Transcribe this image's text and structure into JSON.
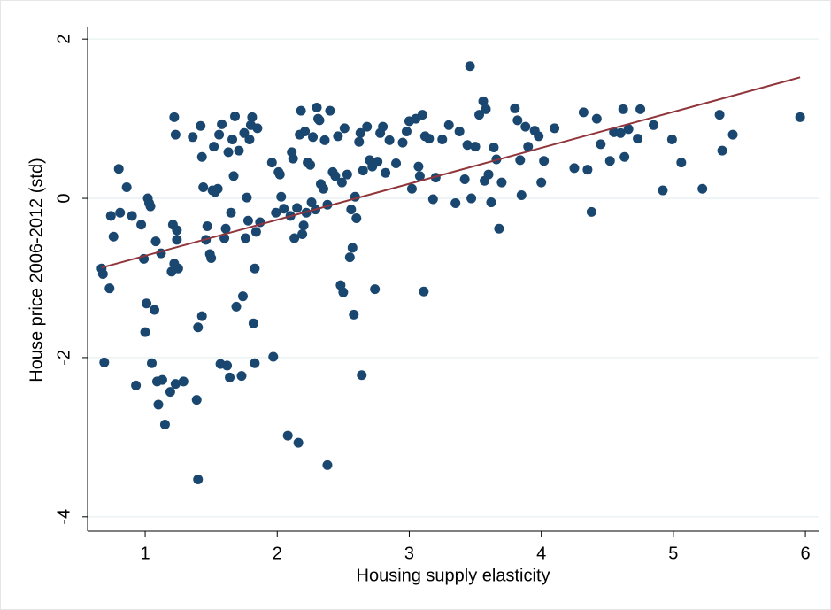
{
  "chart_data": {
    "type": "scatter",
    "x_label": "Housing supply elasticity",
    "y_label": "House price 2006-2012 (std)",
    "xlim": [
      0.564,
      6.1
    ],
    "ylim": [
      -4.18,
      2.38
    ],
    "xticks": [
      1,
      2,
      3,
      4,
      5,
      6
    ],
    "yticks": [
      -4,
      -2,
      0,
      2
    ],
    "grid": true,
    "color": "#1a476f",
    "x": [
      0.67,
      0.68,
      0.69,
      0.73,
      0.74,
      0.76,
      0.8,
      0.81,
      0.86,
      0.9,
      0.93,
      0.97,
      0.99,
      1.0,
      1.01,
      1.02,
      1.03,
      1.04,
      1.05,
      1.07,
      1.08,
      1.09,
      1.1,
      1.12,
      1.13,
      1.15,
      1.19,
      1.2,
      1.21,
      1.22,
      1.22,
      1.23,
      1.23,
      1.24,
      1.24,
      1.25,
      1.29,
      1.36,
      1.39,
      1.4,
      1.4,
      1.42,
      1.43,
      1.43,
      1.44,
      1.46,
      1.47,
      1.49,
      1.5,
      1.51,
      1.52,
      1.53,
      1.55,
      1.56,
      1.57,
      1.58,
      1.6,
      1.61,
      1.62,
      1.63,
      1.64,
      1.65,
      1.66,
      1.67,
      1.68,
      1.69,
      1.71,
      1.73,
      1.74,
      1.75,
      1.76,
      1.77,
      1.78,
      1.79,
      1.8,
      1.81,
      1.82,
      1.83,
      1.83,
      1.84,
      1.85,
      1.87,
      1.96,
      1.97,
      1.99,
      2.01,
      2.02,
      2.03,
      2.05,
      2.08,
      2.1,
      2.11,
      2.12,
      2.13,
      2.15,
      2.16,
      2.17,
      2.18,
      2.19,
      2.2,
      2.21,
      2.22,
      2.23,
      2.25,
      2.26,
      2.27,
      2.29,
      2.3,
      2.31,
      2.32,
      2.33,
      2.35,
      2.36,
      2.38,
      2.38,
      2.4,
      2.42,
      2.44,
      2.46,
      2.48,
      2.49,
      2.5,
      2.51,
      2.53,
      2.55,
      2.56,
      2.57,
      2.58,
      2.59,
      2.6,
      2.62,
      2.63,
      2.64,
      2.65,
      2.68,
      2.7,
      2.72,
      2.74,
      2.76,
      2.78,
      2.8,
      2.82,
      2.85,
      2.9,
      2.95,
      2.98,
      3.0,
      3.02,
      3.05,
      3.07,
      3.08,
      3.1,
      3.11,
      3.12,
      3.15,
      3.18,
      3.2,
      3.25,
      3.3,
      3.35,
      3.38,
      3.42,
      3.44,
      3.46,
      3.47,
      3.5,
      3.53,
      3.56,
      3.57,
      3.58,
      3.6,
      3.62,
      3.64,
      3.66,
      3.68,
      3.7,
      3.8,
      3.82,
      3.84,
      3.85,
      3.88,
      3.9,
      3.95,
      3.98,
      4.0,
      4.02,
      4.1,
      4.25,
      4.32,
      4.35,
      4.38,
      4.42,
      4.45,
      4.52,
      4.55,
      4.6,
      4.62,
      4.63,
      4.66,
      4.73,
      4.75,
      4.85,
      4.92,
      4.99,
      5.06,
      5.22,
      5.35,
      5.37,
      5.45,
      5.96
    ],
    "y": [
      -0.88,
      -0.95,
      -2.06,
      -1.13,
      -0.22,
      -0.48,
      0.37,
      -0.18,
      0.14,
      -0.22,
      -2.35,
      -0.33,
      -0.76,
      -1.68,
      -1.32,
      0.0,
      -0.06,
      -0.1,
      -2.07,
      -1.4,
      -0.54,
      -2.3,
      -2.59,
      -0.69,
      -2.28,
      -2.84,
      -2.43,
      -0.92,
      -0.33,
      -0.82,
      1.02,
      -2.33,
      0.8,
      -0.52,
      -0.4,
      -0.88,
      -2.3,
      0.77,
      -2.53,
      -3.53,
      -1.62,
      0.91,
      -1.48,
      0.52,
      0.14,
      -0.52,
      -0.35,
      -0.7,
      -0.75,
      0.1,
      0.65,
      0.08,
      0.12,
      0.8,
      -2.08,
      0.93,
      -0.5,
      -0.38,
      -2.1,
      0.58,
      -2.25,
      -0.18,
      0.74,
      0.28,
      1.03,
      -1.36,
      0.6,
      -2.23,
      -1.23,
      0.82,
      -0.5,
      0.01,
      -0.28,
      0.74,
      0.92,
      1.02,
      -1.57,
      -0.88,
      -2.07,
      -0.42,
      0.88,
      -0.3,
      0.45,
      -1.99,
      -0.18,
      0.33,
      0.3,
      0.02,
      -0.13,
      -2.98,
      -0.22,
      0.58,
      0.5,
      -0.5,
      -0.12,
      -3.07,
      0.8,
      1.1,
      -0.45,
      -0.34,
      0.84,
      -0.18,
      0.45,
      0.42,
      -0.05,
      0.77,
      -0.14,
      1.14,
      1.0,
      0.98,
      0.18,
      0.12,
      0.73,
      -0.08,
      -3.35,
      1.1,
      0.33,
      0.28,
      0.78,
      -1.09,
      0.2,
      -1.18,
      0.88,
      0.3,
      -0.74,
      -0.14,
      -0.62,
      -1.46,
      0.02,
      -0.25,
      0.71,
      0.82,
      -2.22,
      0.35,
      0.9,
      0.48,
      0.4,
      -1.14,
      0.46,
      0.82,
      0.9,
      0.32,
      0.73,
      0.44,
      0.7,
      0.84,
      0.97,
      0.12,
      1.0,
      0.4,
      0.28,
      1.05,
      -1.17,
      0.78,
      0.75,
      -0.01,
      0.26,
      0.74,
      0.92,
      -0.06,
      0.84,
      0.24,
      0.67,
      1.66,
      0.0,
      0.65,
      1.05,
      1.22,
      0.22,
      1.12,
      0.3,
      -0.05,
      0.64,
      0.49,
      -0.38,
      0.2,
      1.13,
      0.98,
      0.48,
      0.04,
      0.9,
      0.65,
      0.85,
      0.78,
      0.2,
      0.47,
      0.88,
      0.38,
      1.08,
      0.36,
      -0.17,
      1.0,
      0.68,
      0.47,
      0.83,
      0.82,
      1.12,
      0.52,
      0.87,
      0.75,
      1.12,
      0.92,
      0.1,
      0.74,
      0.45,
      0.12,
      1.05,
      0.6,
      0.8,
      1.02
    ],
    "fit": {
      "x": [
        0.67,
        5.96
      ],
      "y": [
        -0.87,
        1.52
      ],
      "color": "#90353b"
    }
  }
}
